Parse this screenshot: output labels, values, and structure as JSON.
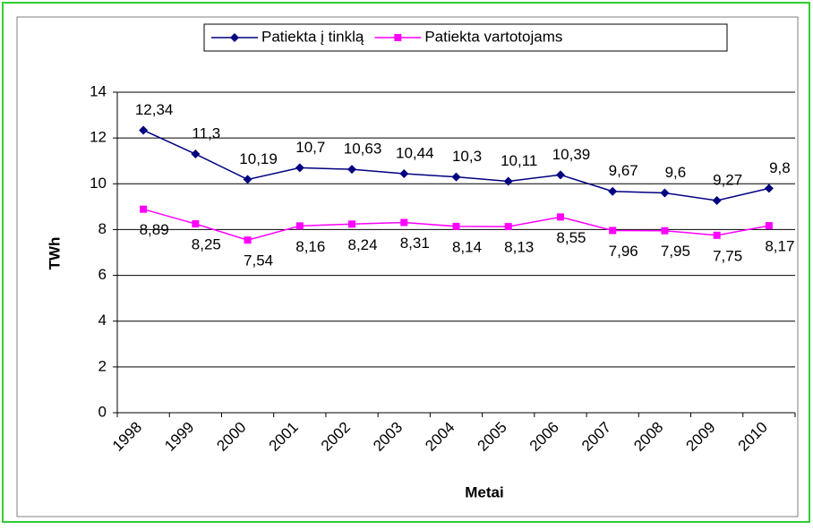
{
  "chart_data": {
    "type": "line",
    "categories": [
      "1998",
      "1999",
      "2000",
      "2001",
      "2002",
      "2003",
      "2004",
      "2005",
      "2006",
      "2007",
      "2008",
      "2009",
      "2010"
    ],
    "series": [
      {
        "name": "Patiekta į tinklą",
        "color": "#000080",
        "values": [
          12.34,
          11.3,
          10.19,
          10.7,
          10.63,
          10.44,
          10.3,
          10.11,
          10.39,
          9.67,
          9.6,
          9.27,
          9.8
        ],
        "value_labels": [
          "12,34",
          "11,3",
          "10,19",
          "10,7",
          "10,63",
          "10,44",
          "10,3",
          "10,11",
          "10,39",
          "9,67",
          "9,6",
          "9,27",
          "9,8"
        ]
      },
      {
        "name": "Patiekta vartotojams",
        "color": "#ff00ff",
        "values": [
          8.89,
          8.25,
          7.54,
          8.16,
          8.24,
          8.31,
          8.14,
          8.13,
          8.55,
          7.96,
          7.95,
          7.75,
          8.17
        ],
        "value_labels": [
          "8,89",
          "8,25",
          "7,54",
          "8,16",
          "8,24",
          "8,31",
          "8,14",
          "8,13",
          "8,55",
          "7,96",
          "7,95",
          "7,75",
          "8,17"
        ]
      }
    ],
    "ylim": [
      0,
      14
    ],
    "yticks": [
      0,
      2,
      4,
      6,
      8,
      10,
      12,
      14
    ],
    "grid": true,
    "y_label": "TWh",
    "x_label": "Metai",
    "legend": "top"
  }
}
